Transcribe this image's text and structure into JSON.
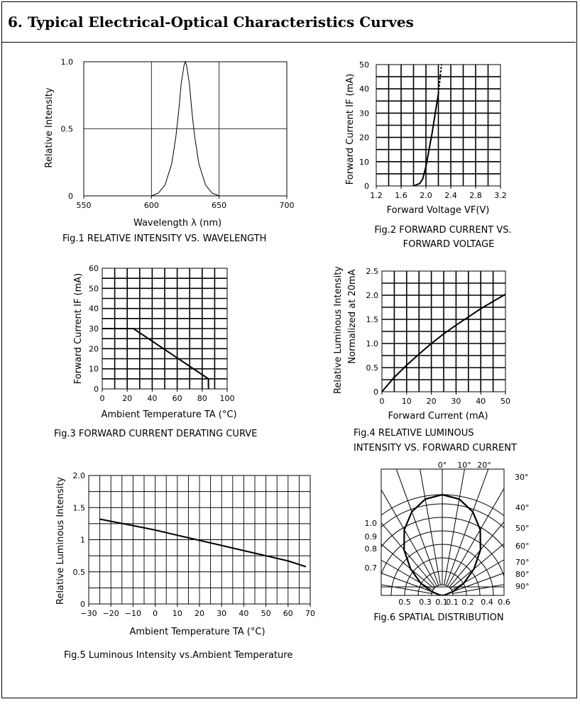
{
  "page": {
    "title": "6. Typical Electrical-Optical Characteristics Curves"
  },
  "chart_data": [
    {
      "id": "fig1",
      "type": "line",
      "caption": "Fig.1      RELATIVE INTENSITY VS. WAVELENGTH",
      "xlabel": "Wavelength λ (nm)",
      "ylabel": "Relative Intensity",
      "xlim": [
        550,
        700
      ],
      "ylim": [
        0,
        1.0
      ],
      "xticks": [
        550,
        600,
        650,
        700
      ],
      "xtick_labels": [
        "550",
        "600",
        "650",
        "700"
      ],
      "yticks": [
        0,
        0.5,
        1.0
      ],
      "ytick_labels": [
        "0",
        "0.5",
        "1.0"
      ],
      "grid": true,
      "series": [
        {
          "x": [
            600,
            605,
            610,
            615,
            618,
            620,
            622,
            624,
            625,
            626,
            628,
            630,
            632,
            635,
            640,
            645,
            650
          ],
          "y": [
            0,
            0.02,
            0.08,
            0.24,
            0.44,
            0.62,
            0.84,
            0.97,
            1.0,
            0.97,
            0.84,
            0.62,
            0.44,
            0.24,
            0.08,
            0.02,
            0
          ]
        }
      ]
    },
    {
      "id": "fig2",
      "type": "line",
      "caption_lines": [
        "Fig.2  FORWARD CURRENT VS.",
        "FORWARD VOLTAGE"
      ],
      "xlabel": "Forward Voltage VF(V)",
      "ylabel": "Forward Current IF (mA)",
      "xlim": [
        1.2,
        3.2
      ],
      "ylim": [
        0,
        50
      ],
      "xticks": [
        1.2,
        1.6,
        2.0,
        2.4,
        2.8,
        3.2
      ],
      "xtick_labels": [
        "1.2",
        "1.6",
        "2.0",
        "2.4",
        "2.8",
        "3.2"
      ],
      "yticks": [
        0,
        10,
        20,
        30,
        40,
        50
      ],
      "ytick_labels": [
        "0",
        "10",
        "20",
        "30",
        "40",
        "50"
      ],
      "grid": true,
      "series": [
        {
          "x": [
            1.8,
            1.9,
            1.95,
            2.0,
            2.05,
            2.1,
            2.15,
            2.2
          ],
          "y": [
            0,
            1,
            3,
            8,
            15,
            22,
            30,
            38
          ]
        },
        {
          "x": [
            2.2,
            2.25
          ],
          "y": [
            38,
            50
          ],
          "dashed": true
        }
      ]
    },
    {
      "id": "fig3",
      "type": "line",
      "caption": "Fig.3  FORWARD CURRENT DERATING CURVE",
      "xlabel": "Ambient Temperature TA (°C)",
      "ylabel": "Forward Current IF (mA)",
      "xlim": [
        0,
        100
      ],
      "ylim": [
        0,
        60
      ],
      "xticks": [
        0,
        20,
        40,
        60,
        80,
        100
      ],
      "xtick_labels": [
        "0",
        "20",
        "40",
        "60",
        "80",
        "100"
      ],
      "yticks": [
        0,
        10,
        20,
        30,
        40,
        50,
        60
      ],
      "ytick_labels": [
        "0",
        "10",
        "20",
        "30",
        "40",
        "50",
        "60"
      ],
      "grid": true,
      "series": [
        {
          "x": [
            0,
            25,
            85,
            85
          ],
          "y": [
            30,
            30,
            5,
            0
          ]
        }
      ]
    },
    {
      "id": "fig4",
      "type": "line",
      "caption_lines": [
        "Fig.4  RELATIVE LUMINOUS",
        "INTENSITY VS. FORWARD CURRENT"
      ],
      "xlabel": "Forward Current (mA)",
      "ylabel_lines": [
        "Relative Luminous Intensity",
        "Normalized at 20mA"
      ],
      "xlim": [
        0,
        50
      ],
      "ylim": [
        0,
        2.5
      ],
      "xticks": [
        0,
        10,
        20,
        30,
        40,
        50
      ],
      "xtick_labels": [
        "0",
        "10",
        "20",
        "30",
        "40",
        "50"
      ],
      "yticks": [
        0,
        0.5,
        1.0,
        1.5,
        2.0,
        2.5
      ],
      "ytick_labels": [
        "0",
        "0.5",
        "1.0",
        "1.5",
        "2.0",
        "2.5"
      ],
      "grid": true,
      "series": [
        {
          "x": [
            0,
            5,
            10,
            15,
            20,
            25,
            30,
            35,
            40,
            45,
            50
          ],
          "y": [
            0,
            0.3,
            0.55,
            0.78,
            1.0,
            1.2,
            1.38,
            1.55,
            1.72,
            1.87,
            2.02
          ]
        }
      ]
    },
    {
      "id": "fig5",
      "type": "line",
      "caption": "Fig.5  Luminous Intensity vs.Ambient Temperature",
      "xlabel": "Ambient Temperature TA (°C)",
      "ylabel": "Relative Luminous Intensity",
      "xlim": [
        -30,
        70
      ],
      "ylim": [
        0,
        2.0
      ],
      "xticks": [
        -30,
        -20,
        -10,
        0,
        10,
        20,
        30,
        40,
        50,
        60,
        70
      ],
      "xtick_labels": [
        "−30",
        "−20",
        "−10",
        "0",
        "10",
        "20",
        "30",
        "40",
        "50",
        "60",
        "70"
      ],
      "yticks": [
        0,
        0.5,
        1,
        1.5,
        2.0
      ],
      "ytick_labels": [
        "0",
        "0.5",
        "1",
        "1.5",
        "2.0"
      ],
      "grid": true,
      "series": [
        {
          "x": [
            -25,
            -10,
            0,
            10,
            20,
            30,
            40,
            50,
            60,
            68
          ],
          "y": [
            1.32,
            1.22,
            1.15,
            1.07,
            0.99,
            0.91,
            0.83,
            0.75,
            0.67,
            0.58
          ]
        }
      ]
    },
    {
      "id": "fig6",
      "type": "polar",
      "caption": "Fig.6  SPATIAL DISTRIBUTION",
      "angle_labels": [
        "0°",
        "10°",
        "20°",
        "30°",
        "40°",
        "50°",
        "60°",
        "70°",
        "80°",
        "90°"
      ],
      "radial_labels_left": [
        "1.0",
        "0.9",
        "0.8",
        "0.7"
      ],
      "bottom_labels": [
        "0.5",
        "0.3",
        "0.1",
        "0.1",
        "0.2",
        "0.4",
        "0.6"
      ],
      "series": [
        {
          "angles": [
            -90,
            -80,
            -70,
            -60,
            -50,
            -40,
            -30,
            -20,
            -10,
            0,
            10,
            20,
            30,
            40,
            50,
            60,
            70,
            80,
            90
          ],
          "r": [
            0,
            0.17,
            0.34,
            0.5,
            0.64,
            0.77,
            0.87,
            0.94,
            0.985,
            1.0,
            0.985,
            0.94,
            0.87,
            0.77,
            0.64,
            0.5,
            0.34,
            0.17,
            0
          ]
        }
      ]
    }
  ]
}
